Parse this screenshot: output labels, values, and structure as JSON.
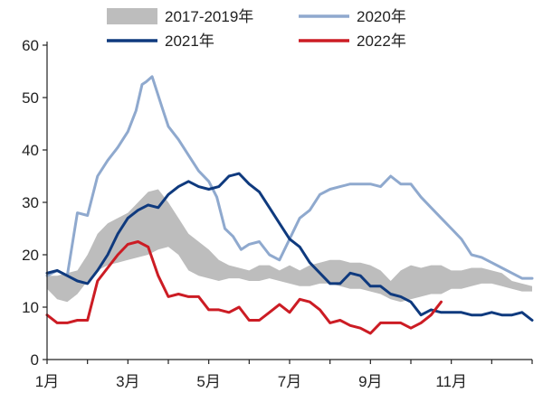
{
  "chart_data": {
    "type": "line",
    "title": "",
    "xlabel": "",
    "ylabel": "",
    "ylim": [
      0,
      60
    ],
    "yticks": [
      0,
      10,
      20,
      30,
      40,
      50,
      60
    ],
    "xlim": [
      1,
      13
    ],
    "xticks": [
      {
        "x": 1,
        "label": "1月"
      },
      {
        "x": 3,
        "label": "3月"
      },
      {
        "x": 5,
        "label": "5月"
      },
      {
        "x": 7,
        "label": "7月"
      },
      {
        "x": 9,
        "label": "9月"
      },
      {
        "x": 11,
        "label": "11月"
      }
    ],
    "grid": false,
    "legend_position": "top",
    "band": {
      "name": "2017-2019年",
      "color": "#bdbdbd",
      "x": [
        1.0,
        1.25,
        1.5,
        1.75,
        2.0,
        2.25,
        2.5,
        2.75,
        3.0,
        3.25,
        3.5,
        3.75,
        4.0,
        4.25,
        4.5,
        4.75,
        5.0,
        5.25,
        5.5,
        5.75,
        6.0,
        6.25,
        6.5,
        6.75,
        7.0,
        7.25,
        7.5,
        7.75,
        8.0,
        8.25,
        8.5,
        8.75,
        9.0,
        9.25,
        9.5,
        9.75,
        10.0,
        10.25,
        10.5,
        10.75,
        11.0,
        11.25,
        11.5,
        11.75,
        12.0,
        12.25,
        12.5,
        12.75,
        13.0
      ],
      "upper": [
        16.0,
        16.0,
        16.5,
        17.0,
        20.0,
        24.0,
        26.0,
        27.0,
        28.0,
        30.0,
        32.0,
        32.5,
        30.0,
        27.0,
        24.0,
        22.5,
        21.0,
        19.0,
        18.0,
        17.5,
        17.0,
        18.0,
        18.0,
        17.0,
        18.0,
        17.0,
        18.0,
        18.5,
        19.0,
        19.0,
        18.5,
        18.5,
        18.0,
        17.0,
        15.0,
        17.0,
        18.0,
        17.5,
        18.0,
        18.0,
        17.0,
        17.0,
        17.5,
        17.5,
        17.0,
        16.5,
        15.0,
        14.5,
        14.0
      ],
      "lower": [
        13.5,
        11.5,
        11.0,
        12.5,
        15.0,
        17.0,
        18.0,
        18.5,
        19.0,
        19.5,
        20.0,
        21.0,
        21.5,
        20.0,
        17.0,
        16.0,
        15.5,
        15.0,
        15.5,
        15.5,
        15.0,
        15.0,
        15.5,
        15.0,
        14.5,
        14.0,
        14.0,
        14.5,
        14.5,
        14.0,
        13.5,
        13.5,
        13.0,
        12.5,
        11.5,
        11.0,
        11.5,
        12.0,
        12.5,
        12.5,
        13.5,
        13.5,
        14.0,
        14.5,
        14.5,
        14.0,
        13.5,
        13.0,
        13.0
      ]
    },
    "series": [
      {
        "name": "2020年",
        "color": "#8fa9ce",
        "width": 3,
        "x": [
          1.0,
          1.25,
          1.5,
          1.75,
          2.0,
          2.25,
          2.5,
          2.75,
          3.0,
          3.2,
          3.35,
          3.45,
          3.6,
          3.85,
          4.0,
          4.25,
          4.5,
          4.75,
          5.0,
          5.2,
          5.4,
          5.6,
          5.8,
          6.0,
          6.25,
          6.5,
          6.75,
          7.0,
          7.25,
          7.5,
          7.75,
          8.0,
          8.25,
          8.5,
          8.75,
          9.0,
          9.25,
          9.5,
          9.75,
          10.0,
          10.25,
          10.5,
          10.75,
          11.0,
          11.25,
          11.5,
          11.75,
          12.0,
          12.25,
          12.5,
          12.75,
          13.0
        ],
        "y": [
          16.0,
          17.0,
          16.0,
          28.0,
          27.5,
          35.0,
          38.0,
          40.5,
          43.5,
          47.5,
          52.5,
          53.0,
          54.0,
          48.0,
          44.5,
          42.0,
          39.0,
          36.0,
          34.0,
          31.0,
          25.0,
          23.5,
          21.0,
          22.0,
          22.5,
          20.0,
          19.0,
          23.0,
          27.0,
          28.5,
          31.5,
          32.5,
          33.0,
          33.5,
          33.5,
          33.5,
          33.0,
          35.0,
          33.5,
          33.5,
          31.0,
          29.0,
          27.0,
          25.0,
          23.0,
          20.0,
          19.5,
          18.5,
          17.5,
          16.5,
          15.5,
          15.5
        ]
      },
      {
        "name": "2021年",
        "color": "#0f3a7e",
        "width": 3,
        "x": [
          1.0,
          1.25,
          1.5,
          1.75,
          2.0,
          2.25,
          2.5,
          2.75,
          3.0,
          3.25,
          3.5,
          3.75,
          4.0,
          4.25,
          4.5,
          4.75,
          5.0,
          5.25,
          5.5,
          5.75,
          6.0,
          6.25,
          6.5,
          6.75,
          7.0,
          7.25,
          7.5,
          7.75,
          8.0,
          8.25,
          8.5,
          8.75,
          9.0,
          9.25,
          9.5,
          9.75,
          10.0,
          10.25,
          10.5,
          10.75,
          11.0,
          11.25,
          11.5,
          11.75,
          12.0,
          12.25,
          12.5,
          12.75,
          13.0
        ],
        "y": [
          16.5,
          17.0,
          16.0,
          15.0,
          14.5,
          17.0,
          20.0,
          24.0,
          27.0,
          28.5,
          29.5,
          29.0,
          31.5,
          33.0,
          34.0,
          33.0,
          32.5,
          33.0,
          35.0,
          35.5,
          33.5,
          32.0,
          29.0,
          26.0,
          23.0,
          21.5,
          18.5,
          16.5,
          14.5,
          14.5,
          16.5,
          16.0,
          14.0,
          14.0,
          12.5,
          12.0,
          11.0,
          8.5,
          9.5,
          9.0,
          9.0,
          9.0,
          8.5,
          8.5,
          9.0,
          8.5,
          8.5,
          9.0,
          7.5
        ]
      },
      {
        "name": "2022年",
        "color": "#cc1c24",
        "width": 3,
        "x": [
          1.0,
          1.25,
          1.5,
          1.75,
          2.0,
          2.25,
          2.5,
          2.75,
          3.0,
          3.25,
          3.5,
          3.75,
          4.0,
          4.25,
          4.5,
          4.75,
          5.0,
          5.25,
          5.5,
          5.75,
          6.0,
          6.25,
          6.5,
          6.75,
          7.0,
          7.25,
          7.5,
          7.75,
          8.0,
          8.25,
          8.5,
          8.75,
          9.0,
          9.25,
          9.5,
          9.75,
          10.0,
          10.25,
          10.5,
          10.75
        ],
        "y": [
          8.5,
          7.0,
          7.0,
          7.5,
          7.5,
          15.0,
          17.5,
          20.0,
          22.0,
          22.5,
          21.5,
          16.0,
          12.0,
          12.5,
          12.0,
          12.0,
          9.5,
          9.5,
          9.0,
          10.0,
          7.5,
          7.5,
          9.0,
          10.5,
          9.0,
          11.5,
          11.0,
          9.5,
          7.0,
          7.5,
          6.5,
          6.0,
          5.0,
          7.0,
          7.0,
          7.0,
          6.0,
          7.0,
          8.5,
          11.0
        ]
      }
    ],
    "legend": [
      {
        "key": "band",
        "label": "2017-2019年"
      },
      {
        "key": "s0",
        "label": "2020年"
      },
      {
        "key": "s1",
        "label": "2021年"
      },
      {
        "key": "s2",
        "label": "2022年"
      }
    ]
  }
}
